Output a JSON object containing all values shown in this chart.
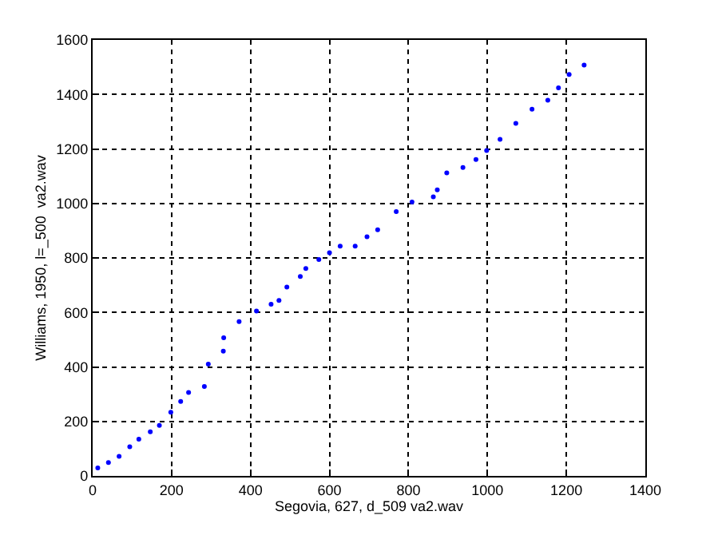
{
  "chart_data": {
    "type": "scatter",
    "xlabel": "Segovia, 627, d_509 va2.wav",
    "ylabel": "Williams, 1950, l=_500  va2.wav",
    "x": [
      13,
      40,
      67,
      94,
      117,
      146,
      169,
      198,
      223,
      243,
      283,
      293,
      331,
      332,
      371,
      415,
      452,
      472,
      492,
      526,
      540,
      573,
      600,
      627,
      665,
      695,
      722,
      769,
      809,
      863,
      873,
      897,
      938,
      971,
      998,
      1032,
      1072,
      1113,
      1153,
      1180,
      1207,
      1245
    ],
    "series": [
      {
        "color": "#0000ff",
        "values": [
          29,
          49,
          72,
          107,
          135,
          162,
          185,
          234,
          273,
          306,
          328,
          410,
          458,
          507,
          566,
          605,
          630,
          644,
          693,
          732,
          761,
          794,
          819,
          843,
          843,
          878,
          903,
          970,
          1005,
          1024,
          1050,
          1112,
          1132,
          1161,
          1194,
          1235,
          1294,
          1346,
          1379,
          1424,
          1473,
          1508
        ]
      }
    ],
    "xlim": [
      0,
      1400
    ],
    "xticks": [
      0,
      200,
      400,
      600,
      800,
      1000,
      1200,
      1400
    ],
    "ylim": [
      0,
      1600
    ],
    "yticks": [
      0,
      200,
      400,
      600,
      800,
      1000,
      1200,
      1400,
      1600
    ],
    "grid": true,
    "marker": "circle"
  }
}
